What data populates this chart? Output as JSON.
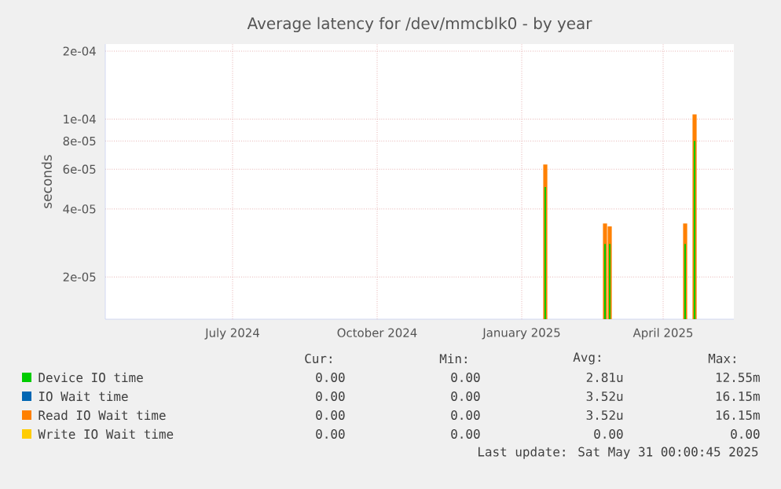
{
  "chart_data": {
    "type": "bar",
    "title": "Average latency for /dev/mmcblk0 - by year",
    "ylabel": "seconds",
    "log": "y",
    "grid": true,
    "legend": "bottom",
    "xlim": [
      "2024-04-11",
      "2025-05-16"
    ],
    "xticks": [
      {
        "value": "2024-07-01",
        "label": "July 2024"
      },
      {
        "value": "2024-10-01",
        "label": "October 2024"
      },
      {
        "value": "2025-01-01",
        "label": "January 2025"
      },
      {
        "value": "2025-04-01",
        "label": "April 2025"
      }
    ],
    "ylim": [
      1.3e-05,
      0.000215
    ],
    "yticks": [
      {
        "value": 2e-05,
        "label": "2e-05"
      },
      {
        "value": 4e-05,
        "label": "4e-05"
      },
      {
        "value": 6e-05,
        "label": "6e-05"
      },
      {
        "value": 8e-05,
        "label": "8e-05"
      },
      {
        "value": 0.0001,
        "label": "1e-04"
      },
      {
        "value": 0.0002,
        "label": "2e-04"
      }
    ],
    "x": [
      "2025-01-16",
      "2025-02-23",
      "2025-02-26",
      "2025-04-15",
      "2025-04-21"
    ],
    "series": [
      {
        "name": "Device IO time",
        "color": "#00cc00",
        "values": [
          5e-05,
          2.8e-05,
          2.8e-05,
          2.8e-05,
          8e-05
        ]
      },
      {
        "name": "IO Wait time",
        "color": "#0066b3",
        "values": [
          null,
          null,
          null,
          null,
          null
        ]
      },
      {
        "name": "Read IO Wait time",
        "color": "#ff8000",
        "values": [
          6.3e-05,
          3.45e-05,
          3.35e-05,
          3.45e-05,
          0.000105
        ]
      },
      {
        "name": "Write IO Wait time",
        "color": "#ffcc00",
        "values": [
          null,
          null,
          null,
          null,
          null
        ]
      }
    ],
    "annotations": [
      "Cur:",
      "Min:",
      "Avg:",
      "Max:",
      "0.00",
      "0.00",
      "2.81u",
      "12.55m",
      "0.00",
      "0.00",
      "3.52u",
      "16.15m",
      "0.00",
      "0.00",
      "3.52u",
      "16.15m",
      "0.00",
      "0.00",
      "0.00",
      "0.00",
      "Last update: Sat May 31 00:00:45 2025"
    ]
  }
}
